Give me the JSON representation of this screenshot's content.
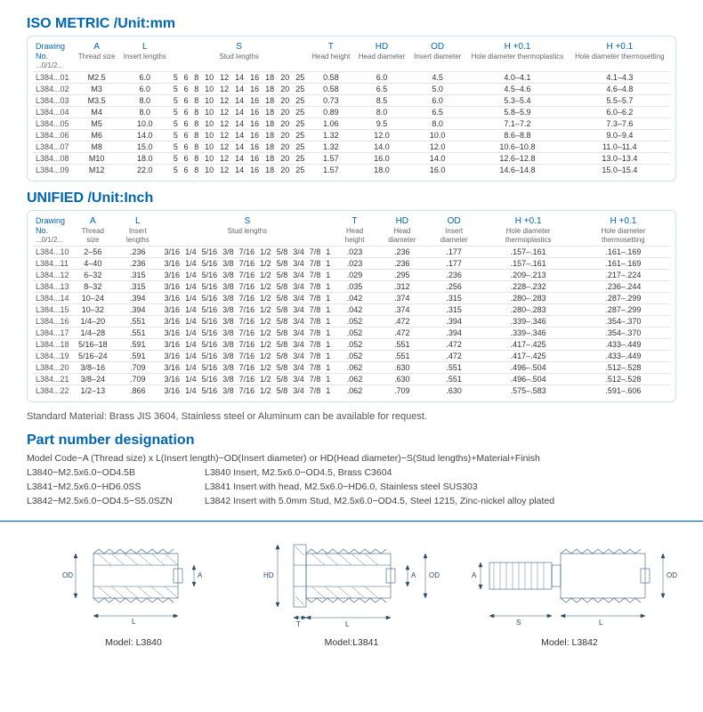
{
  "iso": {
    "title": "ISO METRIC /Unit:mm",
    "headers": {
      "dn": {
        "top": "Drawing",
        "mid": "No.",
        "sub": "...0/1/2..."
      },
      "A": {
        "top": "A",
        "sub": "Thread size"
      },
      "L": {
        "top": "L",
        "sub": "Insert lengths"
      },
      "S": {
        "top": "S",
        "sub": "Stud lengths"
      },
      "T": {
        "top": "T",
        "sub": "Head height"
      },
      "HD": {
        "top": "HD",
        "sub": "Head diameter"
      },
      "OD": {
        "top": "OD",
        "sub": "Insert diameter"
      },
      "H1": {
        "top": "H +0.1",
        "sub": "Hole diameter thermoplastics"
      },
      "H2": {
        "top": "H +0.1",
        "sub": "Hole diameter thermosetting"
      }
    },
    "stud_vals": [
      "5",
      "6",
      "8",
      "10",
      "12",
      "14",
      "16",
      "18",
      "20",
      "25"
    ],
    "rows": [
      {
        "dn": "L384...01",
        "A": "M2.5",
        "L": "6.0",
        "T": "0.58",
        "HD": "6.0",
        "OD": "4.5",
        "H1": "4.0–4.1",
        "H2": "4.1–4.3"
      },
      {
        "dn": "L384...02",
        "A": "M3",
        "L": "6.0",
        "T": "0.58",
        "HD": "6.5",
        "OD": "5.0",
        "H1": "4.5–4.6",
        "H2": "4.6–4.8"
      },
      {
        "dn": "L384...03",
        "A": "M3.5",
        "L": "8.0",
        "T": "0.73",
        "HD": "8.5",
        "OD": "6.0",
        "H1": "5.3–5.4",
        "H2": "5.5–5.7"
      },
      {
        "dn": "L384...04",
        "A": "M4",
        "L": "8.0",
        "T": "0.89",
        "HD": "8.0",
        "OD": "6.5",
        "H1": "5.8–5.9",
        "H2": "6.0–6.2"
      },
      {
        "dn": "L384...05",
        "A": "M5",
        "L": "10.0",
        "T": "1.06",
        "HD": "9.5",
        "OD": "8.0",
        "H1": "7.1–7.2",
        "H2": "7.3–7.6"
      },
      {
        "dn": "L384...06",
        "A": "M6",
        "L": "14.0",
        "T": "1.32",
        "HD": "12.0",
        "OD": "10.0",
        "H1": "8.6–8.8",
        "H2": "9.0–9.4"
      },
      {
        "dn": "L384...07",
        "A": "M8",
        "L": "15.0",
        "T": "1.32",
        "HD": "14.0",
        "OD": "12.0",
        "H1": "10.6–10.8",
        "H2": "11.0–11.4"
      },
      {
        "dn": "L384...08",
        "A": "M10",
        "L": "18.0",
        "T": "1.57",
        "HD": "16.0",
        "OD": "14.0",
        "H1": "12.6–12.8",
        "H2": "13.0–13.4"
      },
      {
        "dn": "L384...09",
        "A": "M12",
        "L": "22.0",
        "T": "1.57",
        "HD": "18.0",
        "OD": "16.0",
        "H1": "14.6–14.8",
        "H2": "15.0–15.4"
      }
    ]
  },
  "uni": {
    "title": "UNIFIED /Unit:Inch",
    "stud_vals": [
      "3/16",
      "1/4",
      "5/16",
      "3/8",
      "7/16",
      "1/2",
      "5/8",
      "3/4",
      "7/8",
      "1"
    ],
    "rows": [
      {
        "dn": "L384...10",
        "A": "2–56",
        "L": ".236",
        "T": ".023",
        "HD": ".236",
        "OD": ".177",
        "H1": ".157–.161",
        "H2": ".161–.169"
      },
      {
        "dn": "L384...11",
        "A": "4–40",
        "L": ".236",
        "T": ".023",
        "HD": ".236",
        "OD": ".177",
        "H1": ".157–.161",
        "H2": ".161–.169"
      },
      {
        "dn": "L384...12",
        "A": "6–32",
        "L": ".315",
        "T": ".029",
        "HD": ".295",
        "OD": ".236",
        "H1": ".209–.213",
        "H2": ".217–.224"
      },
      {
        "dn": "L384...13",
        "A": "8–32",
        "L": ".315",
        "T": ".035",
        "HD": ".312",
        "OD": ".256",
        "H1": ".228–.232",
        "H2": ".236–.244"
      },
      {
        "dn": "L384...14",
        "A": "10–24",
        "L": ".394",
        "T": ".042",
        "HD": ".374",
        "OD": ".315",
        "H1": ".280–.283",
        "H2": ".287–.299"
      },
      {
        "dn": "L384...15",
        "A": "10–32",
        "L": ".394",
        "T": ".042",
        "HD": ".374",
        "OD": ".315",
        "H1": ".280–.283",
        "H2": ".287–.299"
      },
      {
        "dn": "L384...16",
        "A": "1/4–20",
        "L": ".551",
        "T": ".052",
        "HD": ".472",
        "OD": ".394",
        "H1": ".339–.346",
        "H2": ".354–.370"
      },
      {
        "dn": "L384...17",
        "A": "1/4–28",
        "L": ".551",
        "T": ".052",
        "HD": ".472",
        "OD": ".394",
        "H1": ".339–.346",
        "H2": ".354–.370"
      },
      {
        "dn": "L384...18",
        "A": "5/16–18",
        "L": ".591",
        "T": ".052",
        "HD": ".551",
        "OD": ".472",
        "H1": ".417–.425",
        "H2": ".433–.449"
      },
      {
        "dn": "L384...19",
        "A": "5/16–24",
        "L": ".591",
        "T": ".052",
        "HD": ".551",
        "OD": ".472",
        "H1": ".417–.425",
        "H2": ".433–.449"
      },
      {
        "dn": "L384...20",
        "A": "3/8–16",
        "L": ".709",
        "T": ".062",
        "HD": ".630",
        "OD": ".551",
        "H1": ".496–.504",
        "H2": ".512–.528"
      },
      {
        "dn": "L384...21",
        "A": "3/8–24",
        "L": ".709",
        "T": ".062",
        "HD": ".630",
        "OD": ".551",
        "H1": ".496–.504",
        "H2": ".512–.528"
      },
      {
        "dn": "L384...22",
        "A": "1/2–13",
        "L": ".866",
        "T": ".062",
        "HD": ".709",
        "OD": ".630",
        "H1": ".575–.583",
        "H2": ".591–.606"
      }
    ]
  },
  "material_note": "Standard Material: Brass JIS 3604, Stainless steel or Aluminum can be available for request.",
  "pn": {
    "title": "Part number designation",
    "formula": "Model Code−A (Thread size) x L(Insert length)−OD(Insert diameter) or HD(Head diameter)−S(Stud lengths)+Material+Finish",
    "examples": [
      {
        "code": "L3840−M2.5x6.0−OD4.5B",
        "desc": "L3840 Insert, M2.5x6.0−OD4.5, Brass C3604"
      },
      {
        "code": "L3841−M2.5x6.0−HD6.0SS",
        "desc": "L3841 Insert with head, M2.5x6.0−HD6.0, Stainless steel SUS303"
      },
      {
        "code": "L3842−M2.5x6.0−OD4.5−S5.0SZN",
        "desc": "L3842 Insert with 5.0mm Stud, M2.5x6.0−OD4.5, Steel 1215, Zinc-nickel alloy plated"
      }
    ]
  },
  "models": [
    {
      "label": "Model: L3840"
    },
    {
      "label": "Model:L3841"
    },
    {
      "label": "Model: L3842"
    }
  ]
}
